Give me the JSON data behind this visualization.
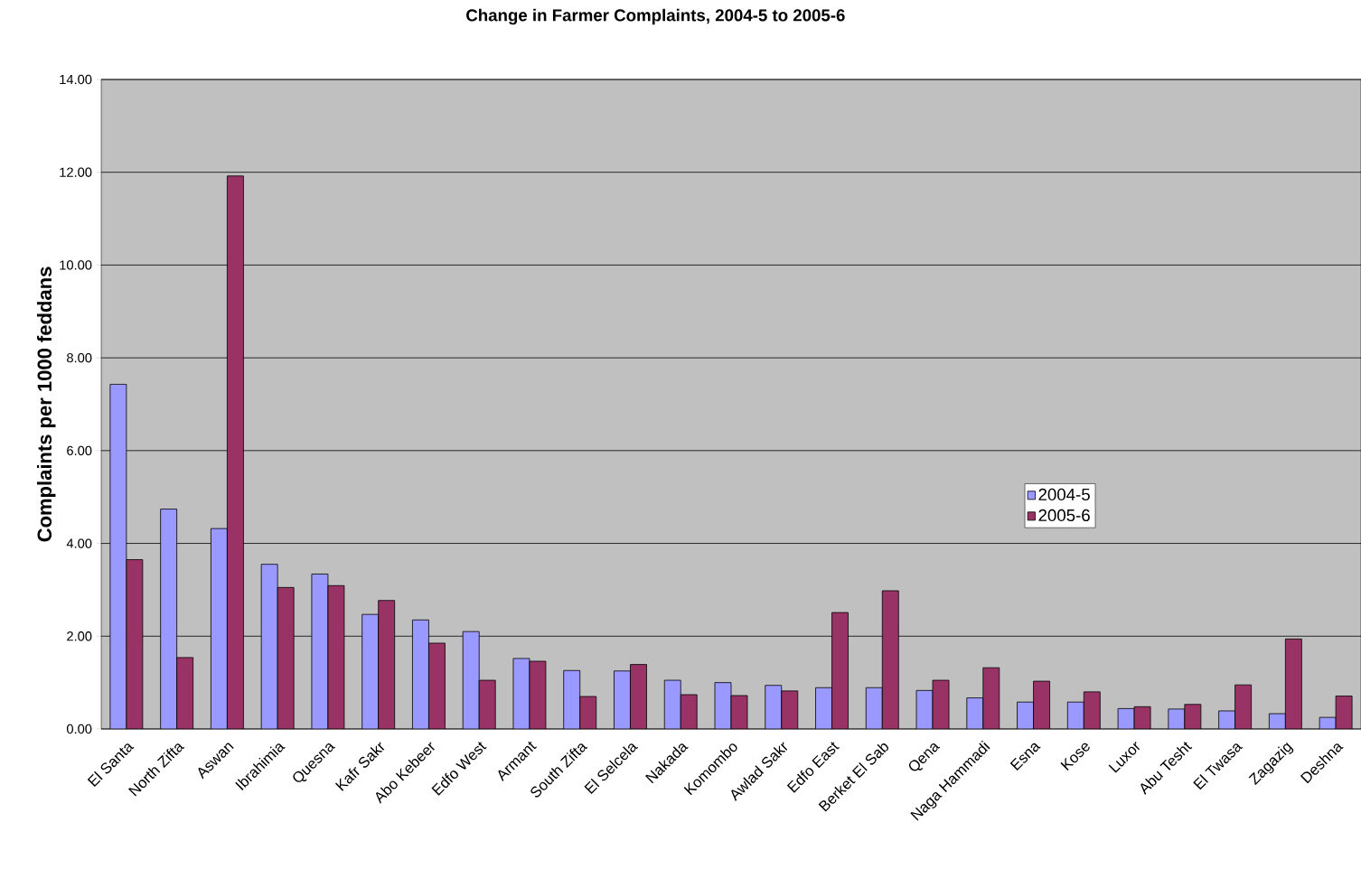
{
  "chart_data": {
    "type": "bar",
    "title": "Change in Farmer Complaints, 2004-5 to 2005-6",
    "ylabel": "Complaints per 1000 feddans",
    "categories": [
      "El Santa",
      "North Zifta",
      "Aswan",
      "Ibrahimia",
      "Quesna",
      "Kafr Sakr",
      "Abo Kebeer",
      "Edfo West",
      "Armant",
      "South Zifta",
      "El Selcela",
      "Nakada",
      "Komombo",
      "Awlad Sakr",
      "Edfo East",
      "Berket El Sab",
      "Qena",
      "Naga Hammadi",
      "Esna",
      "Kose",
      "Luxor",
      "Abu Tesht",
      "El Twasa",
      "Zagazig",
      "Deshna"
    ],
    "series": [
      {
        "name": "2004-5",
        "color": "#9999ff",
        "values": [
          7.43,
          4.74,
          4.32,
          3.55,
          3.34,
          2.47,
          2.35,
          2.1,
          1.52,
          1.26,
          1.25,
          1.05,
          1.0,
          0.94,
          0.89,
          0.89,
          0.83,
          0.67,
          0.58,
          0.58,
          0.44,
          0.43,
          0.39,
          0.33,
          0.25
        ]
      },
      {
        "name": "2005-6",
        "color": "#993366",
        "values": [
          3.65,
          1.54,
          11.92,
          3.05,
          3.09,
          2.77,
          1.85,
          1.05,
          1.46,
          0.7,
          1.39,
          0.74,
          0.72,
          0.82,
          2.51,
          2.98,
          1.05,
          1.32,
          1.03,
          0.8,
          0.48,
          0.53,
          0.95,
          1.94,
          0.71
        ]
      }
    ],
    "ylim": [
      0,
      14
    ],
    "yticks": [
      {
        "value": 0,
        "label": "0.00"
      },
      {
        "value": 2,
        "label": "2.00"
      },
      {
        "value": 4,
        "label": "4.00"
      },
      {
        "value": 6,
        "label": "6.00"
      },
      {
        "value": 8,
        "label": "8.00"
      },
      {
        "value": 10,
        "label": "10.00"
      },
      {
        "value": 12,
        "label": "12.00"
      },
      {
        "value": 14,
        "label": "14.00"
      }
    ],
    "grid": "y",
    "legend": "right"
  }
}
